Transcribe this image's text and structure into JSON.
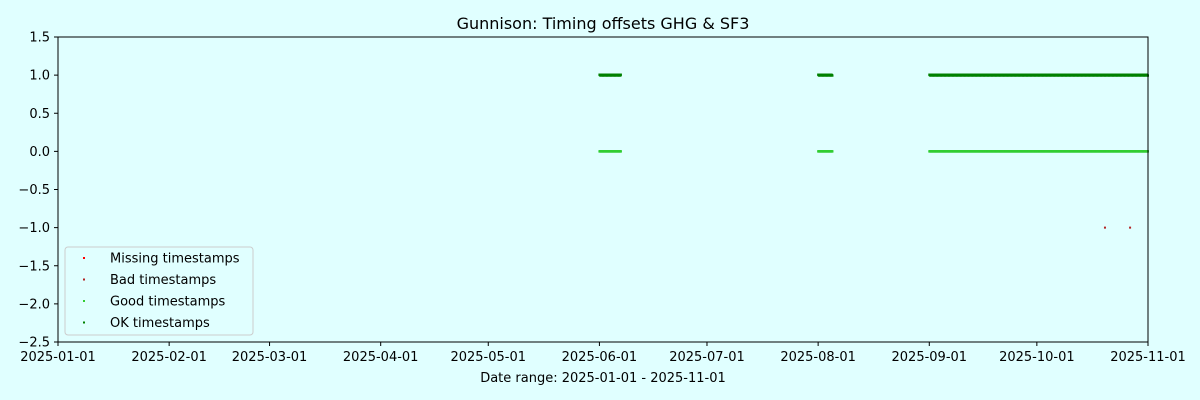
{
  "chart_data": {
    "type": "scatter",
    "title": "Gunnison: Timing offsets GHG & SF3",
    "xlabel": "Date range: 2025-01-01 - 2025-11-01",
    "ylabel": "",
    "xlim": [
      "2025-01-01",
      "2025-11-01"
    ],
    "ylim": [
      -2.5,
      1.5
    ],
    "x_ticks": [
      "2025-01-01",
      "2025-02-01",
      "2025-03-01",
      "2025-04-01",
      "2025-05-01",
      "2025-06-01",
      "2025-07-01",
      "2025-08-01",
      "2025-09-01",
      "2025-10-01",
      "2025-11-01"
    ],
    "y_ticks": [
      "1.5",
      "1.0",
      "0.5",
      "0.0",
      "−0.5",
      "−1.0",
      "−1.5",
      "−2.0",
      "−2.5"
    ],
    "y_tick_values": [
      1.5,
      1.0,
      0.5,
      0.0,
      -0.5,
      -1.0,
      -1.5,
      -2.0,
      -2.5
    ],
    "grid": false,
    "legend_position": "lower-left",
    "series": [
      {
        "name": "Missing timestamps",
        "color": "#ff0000",
        "points": []
      },
      {
        "name": "Bad timestamps",
        "color": "#b22222",
        "points": [
          {
            "x": "2025-10-20",
            "y": -1
          },
          {
            "x": "2025-10-27",
            "y": -1
          }
        ]
      },
      {
        "name": "Good timestamps",
        "color": "#32cd32",
        "ranges": [
          {
            "start": "2025-06-01",
            "end": "2025-06-07",
            "y": 0
          },
          {
            "start": "2025-08-01",
            "end": "2025-08-05",
            "y": 0
          },
          {
            "start": "2025-09-01",
            "end": "2025-11-01",
            "y": 0
          }
        ]
      },
      {
        "name": "OK timestamps",
        "color": "#008000",
        "ranges": [
          {
            "start": "2025-06-01",
            "end": "2025-06-07",
            "y": 1
          },
          {
            "start": "2025-08-01",
            "end": "2025-08-05",
            "y": 1
          },
          {
            "start": "2025-09-01",
            "end": "2025-11-01",
            "y": 1
          }
        ]
      }
    ]
  }
}
